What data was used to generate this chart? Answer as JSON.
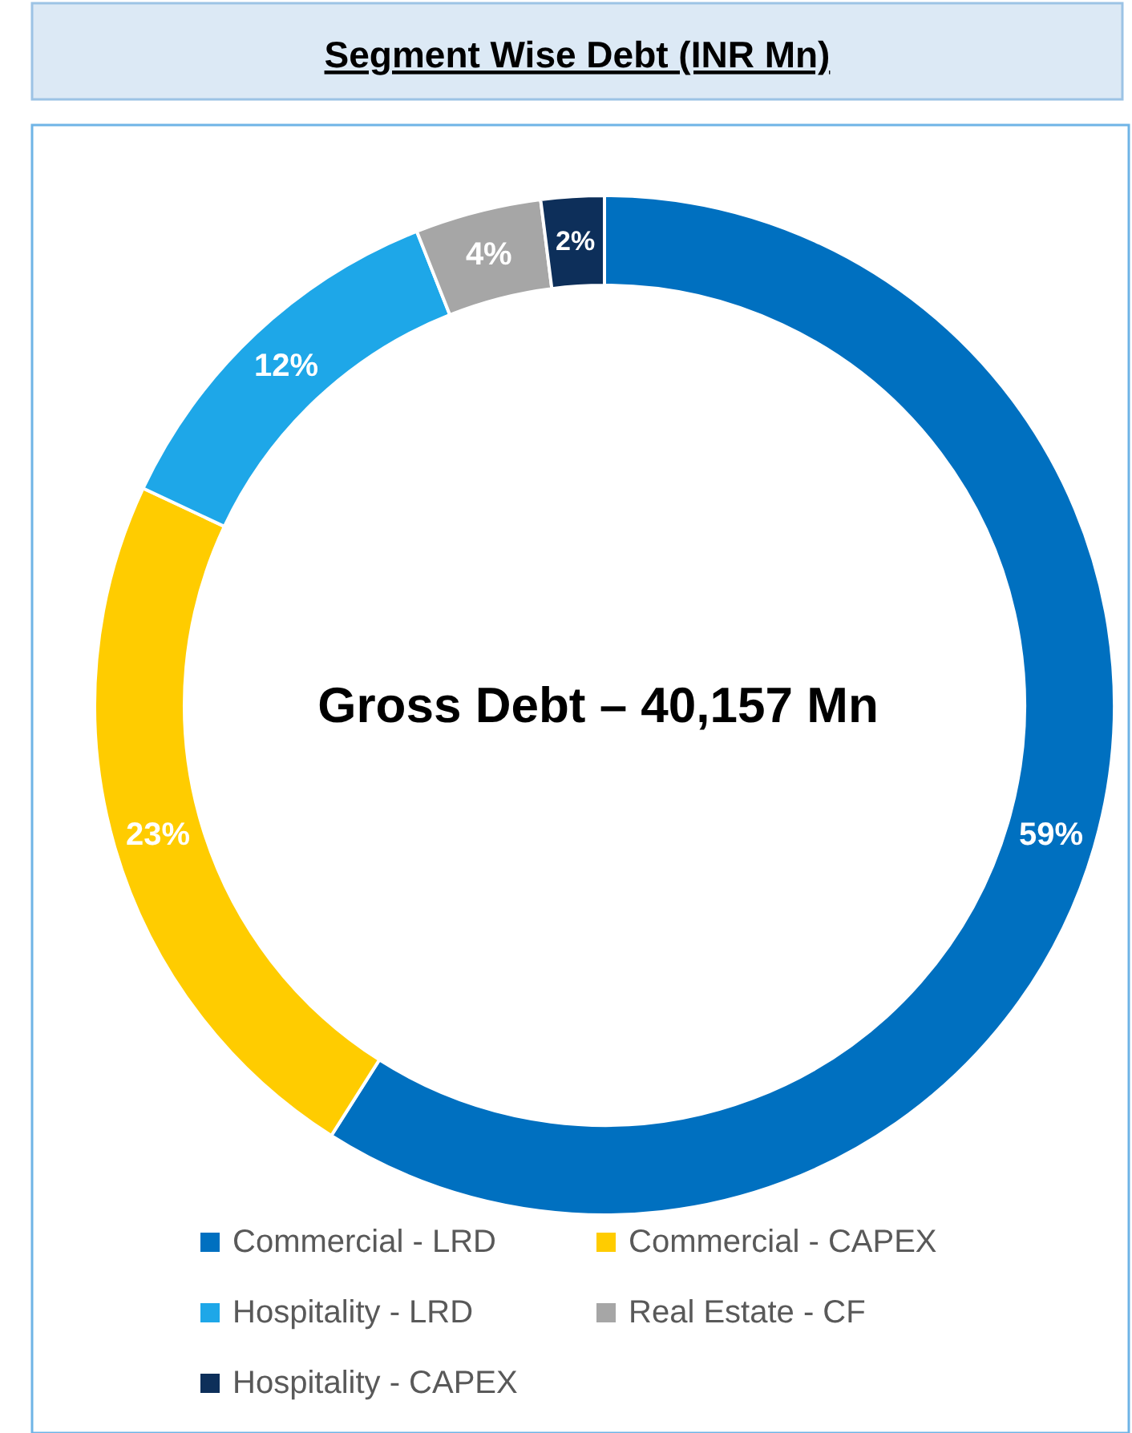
{
  "chart_data": {
    "type": "donut",
    "title": "Segment Wise Debt (INR Mn)",
    "categories": [
      "Commercial - LRD",
      "Commercial - CAPEX",
      "Hospitality - LRD",
      "Real Estate - CF",
      "Hospitality - CAPEX"
    ],
    "values": [
      59,
      23,
      12,
      4,
      2
    ],
    "colors": [
      "#0070c0",
      "#ffcc00",
      "#1ea7e8",
      "#a6a6a6",
      "#0d2f5a"
    ],
    "value_labels": [
      "59%",
      "23%",
      "12%",
      "4%",
      "2%"
    ],
    "annotations": [
      "Gross Debt – 40,157 Mn"
    ],
    "legend": "bottom"
  }
}
